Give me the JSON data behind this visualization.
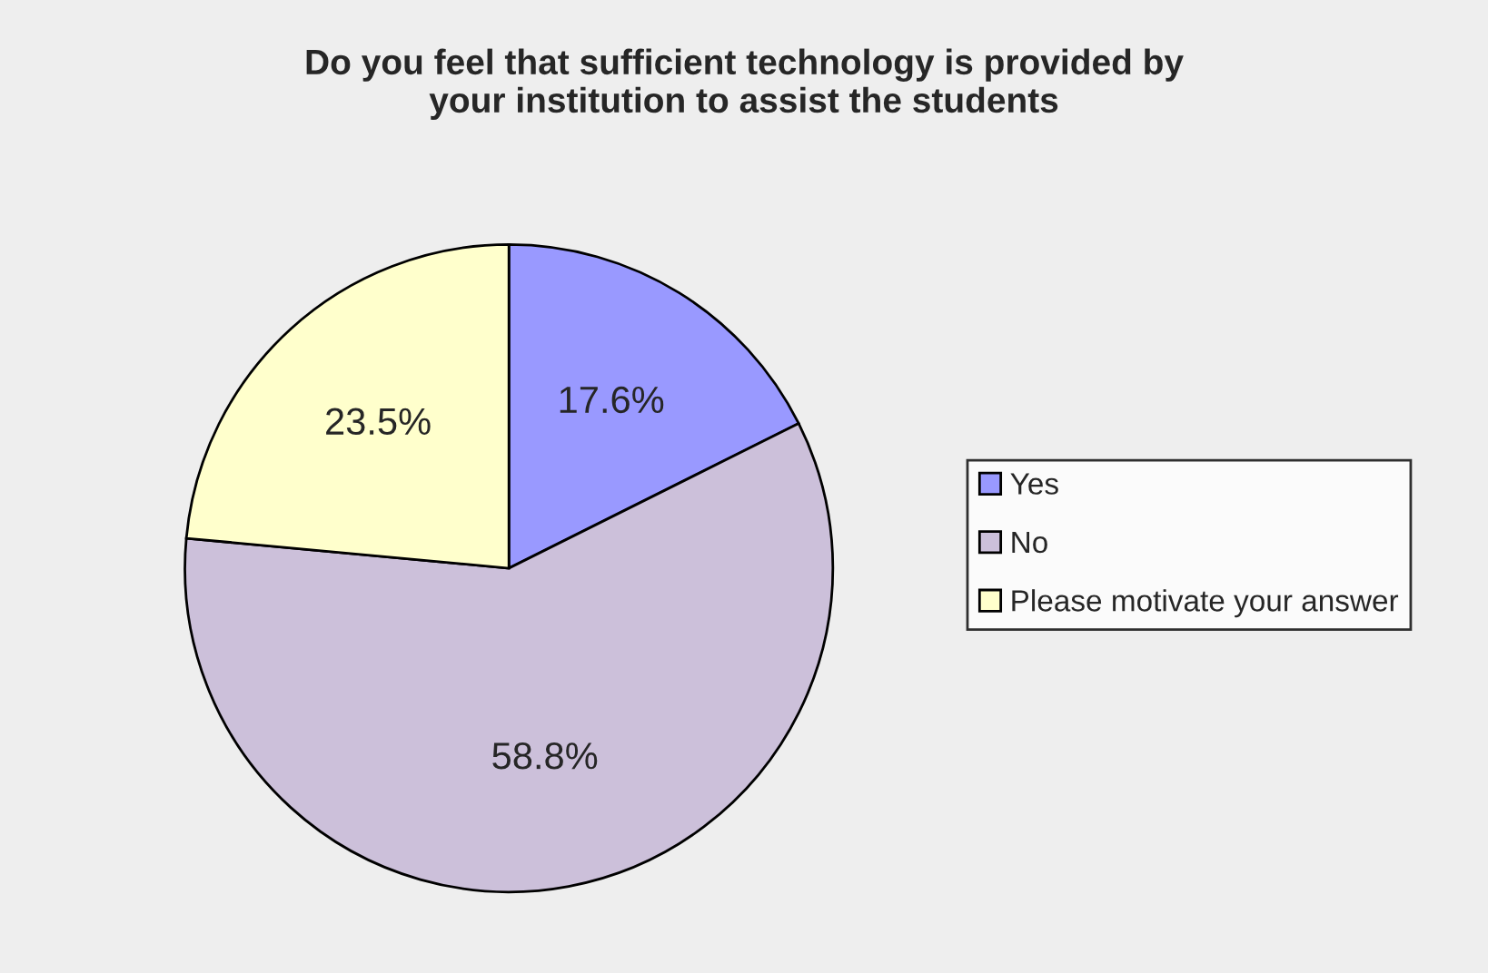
{
  "chart_data": {
    "type": "pie",
    "title": "Do you feel that sufficient technology is provided by\nyour institution to assist the students",
    "categories": [
      "Yes",
      "No",
      "Please motivate your answer"
    ],
    "values": [
      17.6,
      58.8,
      23.5
    ],
    "colors": [
      "#9999ff",
      "#ccc0da",
      "#ffffcc"
    ],
    "value_labels": [
      "17.6%",
      "58.8%",
      "23.5%"
    ],
    "legend": "right"
  }
}
